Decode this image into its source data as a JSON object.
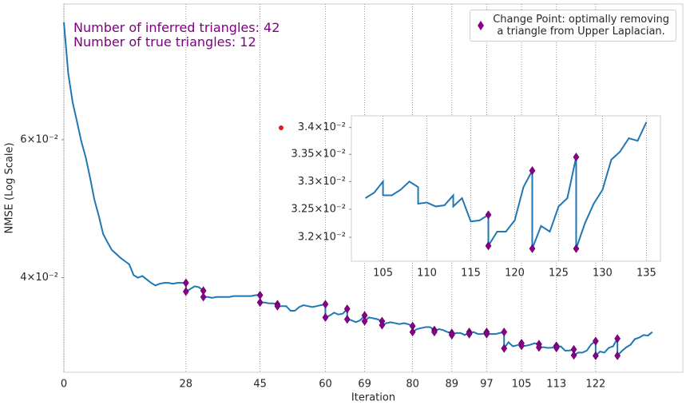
{
  "chart_data": [
    {
      "type": "line",
      "log_y": true,
      "grid": "x",
      "annotations": [
        "Number of inferred triangles: 42",
        "Number of true triangles: 12"
      ],
      "annotation_color": "#800080",
      "xlabel": "Iteration",
      "ylabel": "NMSE (Log Scale)",
      "xlim": [
        0,
        142
      ],
      "ylim": [
        0.0303,
        0.0894
      ],
      "xticks": [
        0,
        28,
        45,
        60,
        69,
        80,
        89,
        97,
        105,
        113,
        122
      ],
      "yticks": [
        {
          "value": 0.06,
          "label": "6×10⁻²"
        },
        {
          "value": 0.04,
          "label": "4×10⁻²"
        }
      ],
      "legend": "upper right",
      "series": [
        {
          "color": "#1f77b4",
          "marker": "line",
          "x": [
            0,
            1,
            2,
            3,
            4,
            5,
            6,
            7,
            8,
            9,
            10,
            11,
            12,
            13,
            14,
            15,
            16,
            17,
            18,
            19,
            20,
            21,
            22,
            23,
            24,
            25,
            26,
            27,
            28,
            28,
            29,
            30,
            31,
            32,
            32,
            33,
            34,
            35,
            36,
            37,
            38,
            39,
            40,
            41,
            42,
            43,
            44,
            45,
            45,
            46,
            47,
            48,
            49,
            49,
            50,
            51,
            52,
            53,
            54,
            55,
            56,
            57,
            58,
            59,
            60,
            60,
            61,
            62,
            63,
            64,
            65,
            65,
            66,
            67,
            68,
            69,
            69,
            70,
            71,
            72,
            73,
            73,
            74,
            75,
            76,
            77,
            78,
            79,
            80,
            80,
            81,
            82,
            83,
            84,
            85,
            85,
            86,
            87,
            88,
            89,
            89,
            90,
            91,
            92,
            93,
            93,
            94,
            95,
            96,
            97,
            97,
            98,
            99,
            100,
            101,
            101,
            102,
            103,
            104,
            105,
            105,
            106,
            107,
            108,
            109,
            109,
            110,
            111,
            112,
            113,
            113,
            114,
            115,
            116,
            117,
            117,
            118,
            119,
            120,
            121,
            122,
            122,
            123,
            124,
            125,
            126,
            127,
            127,
            128,
            129,
            130,
            131,
            132,
            133,
            134,
            135
          ],
          "values": [
            0.0847,
            0.0729,
            0.067,
            0.0633,
            0.0597,
            0.057,
            0.0537,
            0.0503,
            0.048,
            0.0455,
            0.0444,
            0.0434,
            0.0429,
            0.0424,
            0.042,
            0.0416,
            0.0403,
            0.04,
            0.0402,
            0.0398,
            0.0394,
            0.0391,
            0.0393,
            0.0394,
            0.0394,
            0.0393,
            0.0394,
            0.0394,
            0.0394,
            0.0384,
            0.0387,
            0.039,
            0.0389,
            0.0385,
            0.0378,
            0.0378,
            0.0377,
            0.0378,
            0.0378,
            0.0378,
            0.0378,
            0.0379,
            0.0379,
            0.0379,
            0.0379,
            0.0379,
            0.038,
            0.038,
            0.0372,
            0.0372,
            0.0371,
            0.0371,
            0.037,
            0.0368,
            0.0368,
            0.0368,
            0.0363,
            0.0363,
            0.0367,
            0.0369,
            0.0368,
            0.0367,
            0.0368,
            0.0369,
            0.037,
            0.0356,
            0.0358,
            0.0361,
            0.0359,
            0.036,
            0.0365,
            0.0354,
            0.0353,
            0.0351,
            0.0353,
            0.0358,
            0.0352,
            0.0356,
            0.0355,
            0.0354,
            0.0352,
            0.0348,
            0.035,
            0.0351,
            0.035,
            0.0349,
            0.035,
            0.0349,
            0.0347,
            0.0341,
            0.0344,
            0.0345,
            0.0346,
            0.0346,
            0.0343,
            0.0341,
            0.0344,
            0.0343,
            0.0341,
            0.034,
            0.0338,
            0.034,
            0.034,
            0.0338,
            0.0341,
            0.0339,
            0.0341,
            0.0339,
            0.0339,
            0.0341,
            0.0339,
            0.0339,
            0.0339,
            0.034,
            0.0341,
            0.0325,
            0.0331,
            0.0327,
            0.0328,
            0.033,
            0.03275,
            0.03275,
            0.03285,
            0.033,
            0.0329,
            0.0326,
            0.03262,
            0.03255,
            0.03257,
            0.03275,
            0.03255,
            0.0327,
            0.03228,
            0.0323,
            0.0324,
            0.03185,
            0.0321,
            0.0321,
            0.0323,
            0.0329,
            0.0332,
            0.0318,
            0.0322,
            0.0321,
            0.03255,
            0.0327,
            0.03345,
            0.0318,
            0.03225,
            0.0326,
            0.03285,
            0.0334,
            0.03355,
            0.0338,
            0.03375,
            0.0341
          ]
        },
        {
          "name": "Change Point: optimally removing\na triangle from Upper Laplacian.",
          "color": "#8b008b",
          "marker": "diamond",
          "x": [
            28,
            28,
            32,
            32,
            45,
            45,
            49,
            49,
            60,
            60,
            65,
            65,
            69,
            69,
            73,
            73,
            80,
            80,
            85,
            85,
            89,
            89,
            93,
            93,
            97,
            97,
            101,
            101,
            105,
            105,
            109,
            109,
            113,
            113,
            117,
            117,
            122,
            122,
            127,
            127
          ],
          "values": [
            0.0394,
            0.0384,
            0.0385,
            0.0378,
            0.038,
            0.0372,
            0.037,
            0.0368,
            0.037,
            0.0356,
            0.0365,
            0.0354,
            0.0358,
            0.0352,
            0.0352,
            0.0348,
            0.0347,
            0.0341,
            0.0343,
            0.0341,
            0.034,
            0.0338,
            0.0341,
            0.0339,
            0.0341,
            0.0339,
            0.0341,
            0.0325,
            0.033,
            0.03275,
            0.0329,
            0.0326,
            0.03275,
            0.03255,
            0.0324,
            0.03185,
            0.0332,
            0.0318,
            0.03345,
            0.0318
          ]
        }
      ]
    },
    {
      "type": "line",
      "log_y": true,
      "grid": "x",
      "xlim": [
        101.4,
        136.6
      ],
      "ylim": [
        0.03158,
        0.03422
      ],
      "xticks": [
        105,
        110,
        115,
        120,
        125,
        130,
        135
      ],
      "yticks": [
        {
          "value": 0.032,
          "label": "3.2×10⁻²"
        },
        {
          "value": 0.0325,
          "label": "3.25×10⁻²"
        },
        {
          "value": 0.033,
          "label": "3.3×10⁻²"
        },
        {
          "value": 0.0335,
          "label": "3.35×10⁻²"
        },
        {
          "value": 0.034,
          "label": "3.4×10⁻²"
        }
      ],
      "series": [
        {
          "color": "#1f77b4",
          "marker": "line",
          "x": [
            103,
            104,
            105,
            105,
            106,
            107,
            108,
            109,
            109,
            110,
            111,
            112,
            113,
            113,
            114,
            115,
            116,
            117,
            117,
            118,
            119,
            120,
            121,
            122,
            122,
            123,
            124,
            125,
            126,
            127,
            127,
            128,
            129,
            130,
            131,
            132,
            133,
            134,
            135
          ],
          "values": [
            0.0327,
            0.0328,
            0.033,
            0.03275,
            0.03275,
            0.03285,
            0.033,
            0.0329,
            0.0326,
            0.03262,
            0.03255,
            0.03257,
            0.03275,
            0.03255,
            0.0327,
            0.03228,
            0.0323,
            0.0324,
            0.03185,
            0.0321,
            0.0321,
            0.0323,
            0.0329,
            0.0332,
            0.0318,
            0.0322,
            0.0321,
            0.03255,
            0.0327,
            0.03345,
            0.0318,
            0.03225,
            0.0326,
            0.03285,
            0.0334,
            0.03355,
            0.0338,
            0.03375,
            0.0341
          ]
        },
        {
          "color": "#8b008b",
          "marker": "diamond",
          "x": [
            117,
            117,
            122,
            122,
            127,
            127
          ],
          "values": [
            0.0324,
            0.03185,
            0.0332,
            0.0318,
            0.03345,
            0.0318
          ]
        }
      ]
    }
  ]
}
